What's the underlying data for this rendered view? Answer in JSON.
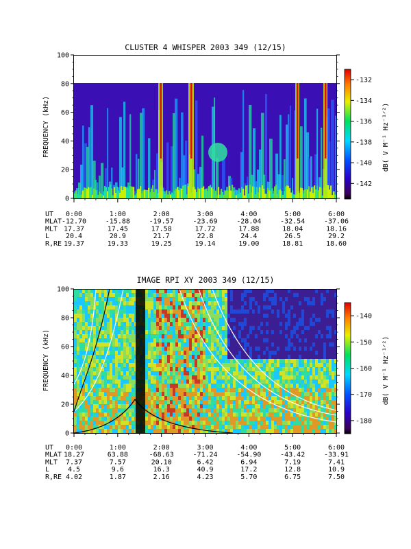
{
  "chart_data": [
    {
      "type": "heatmap",
      "title": "CLUSTER 4 WHISPER 2003 349 (12/15)",
      "ylabel": "FREQUENCY (kHz)",
      "ylim": [
        0,
        100
      ],
      "y_ticks": [
        "0",
        "20",
        "40",
        "60",
        "80",
        "100"
      ],
      "x_ticks": [
        "0:00",
        "1:00",
        "2:00",
        "3:00",
        "4:00",
        "5:00",
        "6:00"
      ],
      "data_ceiling_khz": 80,
      "colorbar": {
        "label": "dB( V M⁻¹ Hz⁻¹ᐟ²)",
        "range": [
          -143.5,
          -131
        ],
        "ticks": [
          "-132",
          "-134",
          "-136",
          "-138",
          "-140",
          "-142"
        ]
      },
      "ephemeris": {
        "labels": [
          "UT",
          "MLAT",
          "MLT",
          "L",
          "R,RE"
        ],
        "rows": [
          [
            "0:00",
            "1:00",
            "2:00",
            "3:00",
            "4:00",
            "5:00",
            "6:00"
          ],
          [
            "-12.70",
            "-15.88",
            "-19.57",
            "-23.69",
            "-28.04",
            "-32.54",
            "-37.06"
          ],
          [
            "17.37",
            "17.45",
            "17.58",
            "17.72",
            "17.88",
            "18.04",
            "18.16"
          ],
          [
            "20.4",
            "20.9",
            "21.7",
            "22.8",
            "24.4",
            "26.5",
            "29.2"
          ],
          [
            "19.37",
            "19.33",
            "19.25",
            "19.14",
            "19.00",
            "18.81",
            "18.60"
          ]
        ]
      }
    },
    {
      "type": "heatmap",
      "title": "IMAGE RPI XY 2003 349 (12/15)",
      "ylabel": "FREQUENCY (kHz)",
      "ylim": [
        0,
        100
      ],
      "y_ticks": [
        "0",
        "20",
        "40",
        "60",
        "80",
        "100"
      ],
      "x_ticks": [
        "0:00",
        "1:00",
        "2:00",
        "3:00",
        "4:00",
        "5:00",
        "6:00"
      ],
      "colorbar": {
        "label": "dB( V M⁻¹ Hz⁻¹ᐟ²)",
        "range": [
          -185,
          -135
        ],
        "ticks": [
          "-140",
          "-150",
          "-160",
          "-170",
          "-180"
        ]
      },
      "ephemeris": {
        "labels": [
          "UT",
          "MLAT",
          "MLT",
          "L",
          "R,RE"
        ],
        "rows": [
          [
            "0:00",
            "1:00",
            "2:00",
            "3:00",
            "4:00",
            "5:00",
            "6:00"
          ],
          [
            "18.27",
            "63.88",
            "-68.63",
            "-71.24",
            "-54.90",
            "-43.42",
            "-33.91"
          ],
          [
            "7.37",
            "7.57",
            "20.10",
            "6.42",
            "6.94",
            "7.19",
            "7.41"
          ],
          [
            "4.5",
            "9.6",
            "16.3",
            "40.9",
            "17.2",
            "12.8",
            "10.9"
          ],
          [
            "4.02",
            "1.87",
            "2.16",
            "4.23",
            "5.70",
            "6.75",
            "7.50"
          ]
        ]
      }
    }
  ]
}
